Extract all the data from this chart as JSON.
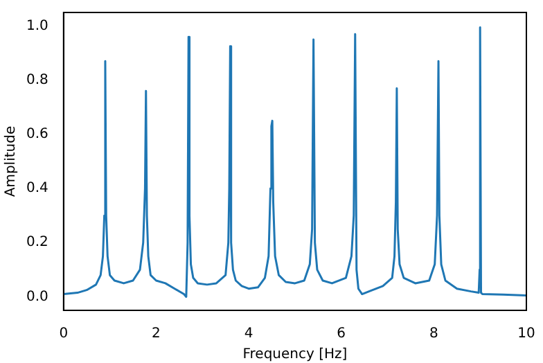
{
  "chart_data": {
    "type": "line",
    "xlabel": "Frequency [Hz]",
    "ylabel": "Amplitude",
    "xlim": [
      0,
      10
    ],
    "ylim": [
      -0.05,
      1.05
    ],
    "xticks": [
      0,
      2,
      4,
      6,
      8,
      10
    ],
    "yticks": [
      {
        "value": 0,
        "label": "0.0"
      },
      0.2,
      0.4,
      0.6,
      0.8,
      {
        "value": 1,
        "label": "1.0"
      }
    ],
    "grid": false,
    "legend": false,
    "marker": "none",
    "line_style": "solid",
    "series": [
      {
        "color": "#1f77b4",
        "x": [
          0,
          0.3,
          0.5,
          0.7,
          0.8,
          0.85,
          0.88,
          0.9,
          0.92,
          0.95,
          1.0,
          1.1,
          1.3,
          1.5,
          1.65,
          1.72,
          1.76,
          1.78,
          1.8,
          1.83,
          1.88,
          2.0,
          2.2,
          2.4,
          2.6,
          2.65,
          2.68,
          2.7,
          2.72,
          2.75,
          2.8,
          2.9,
          3.1,
          3.3,
          3.5,
          3.56,
          3.58,
          3.6,
          3.62,
          3.66,
          3.72,
          3.85,
          4.0,
          4.2,
          4.35,
          4.43,
          4.47,
          4.49,
          4.51,
          4.53,
          4.57,
          4.65,
          4.8,
          5.0,
          5.2,
          5.32,
          5.37,
          5.4,
          5.43,
          5.48,
          5.6,
          5.8,
          6.1,
          6.22,
          6.27,
          6.3,
          6.33,
          6.37,
          6.45,
          6.6,
          6.9,
          7.1,
          7.15,
          7.18,
          7.2,
          7.22,
          7.26,
          7.35,
          7.6,
          7.9,
          8.02,
          8.07,
          8.1,
          8.12,
          8.16,
          8.25,
          8.5,
          8.8,
          8.97,
          8.99,
          9.0,
          9.02,
          9.05,
          9.5,
          10
        ],
        "values": [
          0.01,
          0.015,
          0.025,
          0.045,
          0.08,
          0.15,
          0.3,
          0.87,
          0.3,
          0.15,
          0.08,
          0.06,
          0.05,
          0.06,
          0.1,
          0.2,
          0.4,
          0.76,
          0.3,
          0.15,
          0.08,
          0.06,
          0.05,
          0.03,
          0.01,
          0.0,
          0.2,
          0.96,
          0.3,
          0.12,
          0.07,
          0.05,
          0.045,
          0.05,
          0.08,
          0.2,
          0.4,
          0.925,
          0.2,
          0.1,
          0.06,
          0.04,
          0.03,
          0.035,
          0.07,
          0.15,
          0.4,
          0.63,
          0.65,
          0.35,
          0.15,
          0.08,
          0.055,
          0.05,
          0.06,
          0.12,
          0.25,
          0.95,
          0.2,
          0.1,
          0.06,
          0.05,
          0.07,
          0.15,
          0.3,
          0.97,
          0.1,
          0.03,
          0.01,
          0.02,
          0.04,
          0.07,
          0.15,
          0.35,
          0.77,
          0.25,
          0.12,
          0.07,
          0.05,
          0.06,
          0.12,
          0.3,
          0.87,
          0.3,
          0.12,
          0.06,
          0.03,
          0.02,
          0.015,
          0.1,
          0.995,
          0.015,
          0.01,
          0.008,
          0.005
        ]
      }
    ]
  }
}
